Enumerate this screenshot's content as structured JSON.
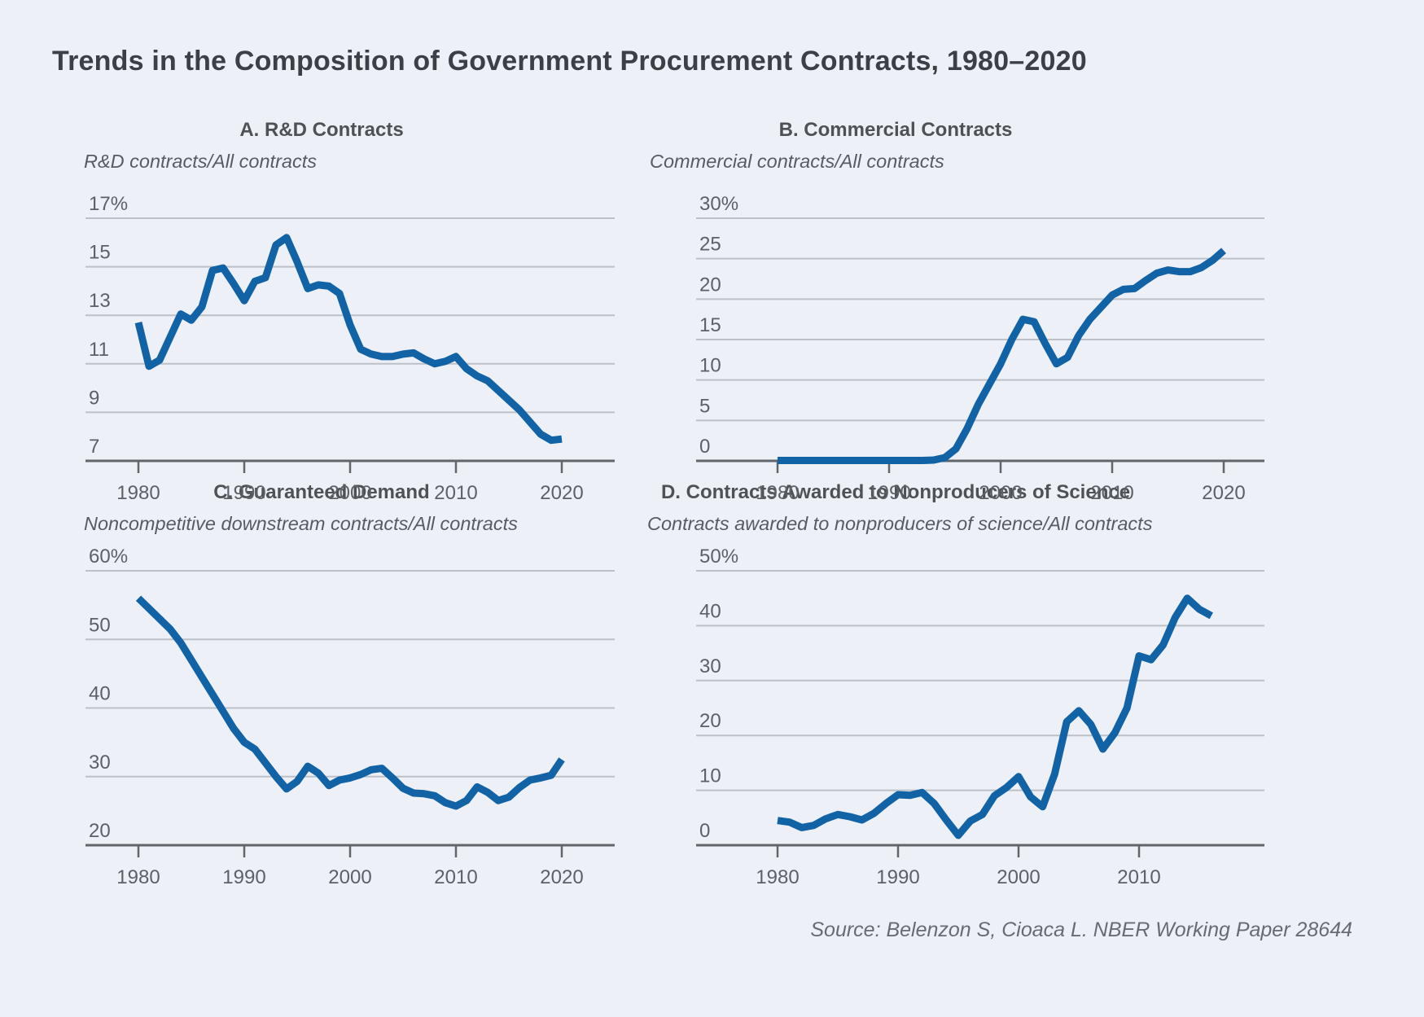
{
  "page": {
    "title": "Trends in the Composition of Government Procurement Contracts, 1980–2020",
    "source": "Source: Belenzon S, Cioaca L. NBER Working Paper 28644"
  },
  "colors": {
    "background": "#edf0f6",
    "line": "#1263a6",
    "gridline": "#bcc1c8",
    "axis": "#60666b",
    "title_text": "#3b4046",
    "label_text": "#5b6167"
  },
  "chart_data": [
    {
      "id": "a",
      "type": "line",
      "title": "A.  R&D Contracts",
      "subtitle": "R&D contracts/All contracts",
      "ylabels": [
        "17%",
        "15",
        "13",
        "11",
        "9",
        "7"
      ],
      "ylim": [
        7,
        17
      ],
      "xlabels": [
        "1980",
        "1990",
        "2000",
        "2010",
        "2020"
      ],
      "x_start_year": 1980,
      "years": [
        1980,
        1981,
        1982,
        1983,
        1984,
        1985,
        1986,
        1987,
        1988,
        1989,
        1990,
        1991,
        1992,
        1993,
        1994,
        1995,
        1996,
        1997,
        1998,
        1999,
        2000,
        2001,
        2002,
        2003,
        2004,
        2005,
        2006,
        2007,
        2008,
        2009,
        2010,
        2011,
        2012,
        2013,
        2014,
        2015,
        2016,
        2017,
        2018,
        2019,
        2020
      ],
      "values": [
        12.7,
        10.9,
        11.15,
        12.1,
        13.05,
        12.8,
        13.35,
        14.85,
        14.95,
        14.3,
        13.6,
        14.4,
        14.55,
        15.9,
        16.2,
        15.2,
        14.1,
        14.25,
        14.2,
        13.9,
        12.6,
        11.6,
        11.4,
        11.3,
        11.3,
        11.4,
        11.45,
        11.2,
        11.0,
        11.1,
        11.3,
        10.8,
        10.5,
        10.3,
        9.9,
        9.5,
        9.1,
        8.6,
        8.1,
        7.85,
        7.9
      ]
    },
    {
      "id": "b",
      "type": "line",
      "title": "B. Commercial Contracts",
      "subtitle": "Commercial contracts/All contracts",
      "ylabels": [
        "30%",
        "25",
        "20",
        "15",
        "10",
        "5",
        "0"
      ],
      "ylim": [
        0,
        30
      ],
      "xlabels": [
        "1980",
        "1990",
        "2000",
        "2010",
        "2020"
      ],
      "x_start_year": 1980,
      "years": [
        1980,
        1981,
        1982,
        1983,
        1984,
        1985,
        1986,
        1987,
        1988,
        1989,
        1990,
        1991,
        1992,
        1993,
        1994,
        1995,
        1996,
        1997,
        1998,
        1999,
        2000,
        2001,
        2002,
        2003,
        2004,
        2005,
        2006,
        2007,
        2008,
        2009,
        2010,
        2011,
        2012,
        2013,
        2014,
        2015,
        2016,
        2017,
        2018,
        2019,
        2020
      ],
      "values": [
        0.05,
        0.05,
        0.05,
        0.05,
        0.05,
        0.05,
        0.05,
        0.05,
        0.05,
        0.05,
        0.05,
        0.05,
        0.05,
        0.05,
        0.1,
        0.4,
        1.5,
        4.0,
        7.0,
        9.5,
        12.0,
        15.0,
        17.5,
        17.2,
        14.5,
        12.0,
        12.8,
        15.5,
        17.5,
        19.0,
        20.5,
        21.2,
        21.3,
        22.3,
        23.2,
        23.6,
        23.4,
        23.4,
        23.9,
        24.8,
        26.0
      ]
    },
    {
      "id": "c",
      "type": "line",
      "title": "C. Guaranteed Demand",
      "subtitle": "Noncompetitive downstream contracts/All contracts",
      "ylabels": [
        "60%",
        "50",
        "40",
        "30",
        "20"
      ],
      "ylim": [
        20,
        60
      ],
      "xlabels": [
        "1980",
        "1990",
        "2000",
        "2010",
        "2020"
      ],
      "x_start_year": 1980,
      "years": [
        1980,
        1981,
        1982,
        1983,
        1984,
        1985,
        1986,
        1987,
        1988,
        1989,
        1990,
        1991,
        1992,
        1993,
        1994,
        1995,
        1996,
        1997,
        1998,
        1999,
        2000,
        2001,
        2002,
        2003,
        2004,
        2005,
        2006,
        2007,
        2008,
        2009,
        2010,
        2011,
        2012,
        2013,
        2014,
        2015,
        2016,
        2017,
        2018,
        2019,
        2020
      ],
      "values": [
        56.0,
        54.5,
        53.0,
        51.5,
        49.5,
        47.0,
        44.5,
        42.0,
        39.5,
        37.0,
        35.0,
        34.0,
        32.0,
        30.0,
        28.2,
        29.3,
        31.5,
        30.5,
        28.7,
        29.5,
        29.8,
        30.3,
        31.0,
        31.2,
        29.8,
        28.3,
        27.6,
        27.5,
        27.2,
        26.2,
        25.7,
        26.5,
        28.5,
        27.7,
        26.5,
        27.0,
        28.4,
        29.5,
        29.8,
        30.2,
        32.5
      ]
    },
    {
      "id": "d",
      "type": "line",
      "title": "D. Contracts Awarded to Nonproducers of Science",
      "subtitle": "Contracts awarded to nonproducers of science/All contracts",
      "ylabels": [
        "50%",
        "40",
        "30",
        "20",
        "10",
        "0"
      ],
      "ylim": [
        0,
        50
      ],
      "xlabels": [
        "1980",
        "1990",
        "2000",
        "2010"
      ],
      "x_start_year": 1980,
      "years": [
        1980,
        1981,
        1982,
        1983,
        1984,
        1985,
        1986,
        1987,
        1988,
        1989,
        1990,
        1991,
        1992,
        1993,
        1994,
        1995,
        1996,
        1997,
        1998,
        1999,
        2000,
        2001,
        2002,
        2003,
        2004,
        2005,
        2006,
        2007,
        2008,
        2009,
        2010,
        2011,
        2012,
        2013,
        2014,
        2015,
        2016
      ],
      "values": [
        4.5,
        4.2,
        3.2,
        3.6,
        4.8,
        5.6,
        5.2,
        4.6,
        5.8,
        7.6,
        9.2,
        9.1,
        9.6,
        7.6,
        4.6,
        1.8,
        4.4,
        5.6,
        9.0,
        10.5,
        12.5,
        8.8,
        7.0,
        13.0,
        22.5,
        24.5,
        22.0,
        17.5,
        20.5,
        25.0,
        34.5,
        33.8,
        36.5,
        41.5,
        45.0,
        43.0,
        41.8
      ]
    }
  ]
}
